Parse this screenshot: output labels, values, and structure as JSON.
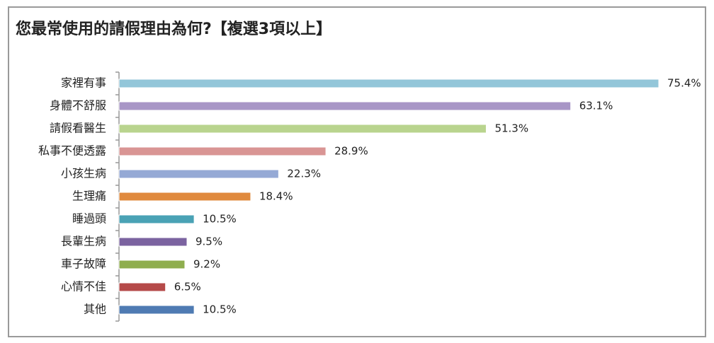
{
  "chart_data": {
    "type": "bar",
    "orientation": "horizontal",
    "title": "您最常使用的請假理由為何?【複選3項以上】",
    "categories": [
      "家裡有事",
      "身體不舒服",
      "請假看醫生",
      "私事不便透露",
      "小孩生病",
      "生理痛",
      "睡過頭",
      "長輩生病",
      "車子故障",
      "心情不佳",
      "其他"
    ],
    "values": [
      75.4,
      63.1,
      51.3,
      28.9,
      22.3,
      18.4,
      10.5,
      9.5,
      9.2,
      6.5,
      10.5
    ],
    "value_labels": [
      "75.4%",
      "63.1%",
      "51.3%",
      "28.9%",
      "22.3%",
      "18.4%",
      "10.5%",
      "9.5%",
      "9.2%",
      "6.5%",
      "10.5%"
    ],
    "colors": [
      "#93c6d9",
      "#a896c6",
      "#b9d48e",
      "#d99594",
      "#95a9d5",
      "#e08a3e",
      "#4aa2b5",
      "#7b63a0",
      "#8fae4e",
      "#b54a49",
      "#4f7bb3"
    ]
  }
}
